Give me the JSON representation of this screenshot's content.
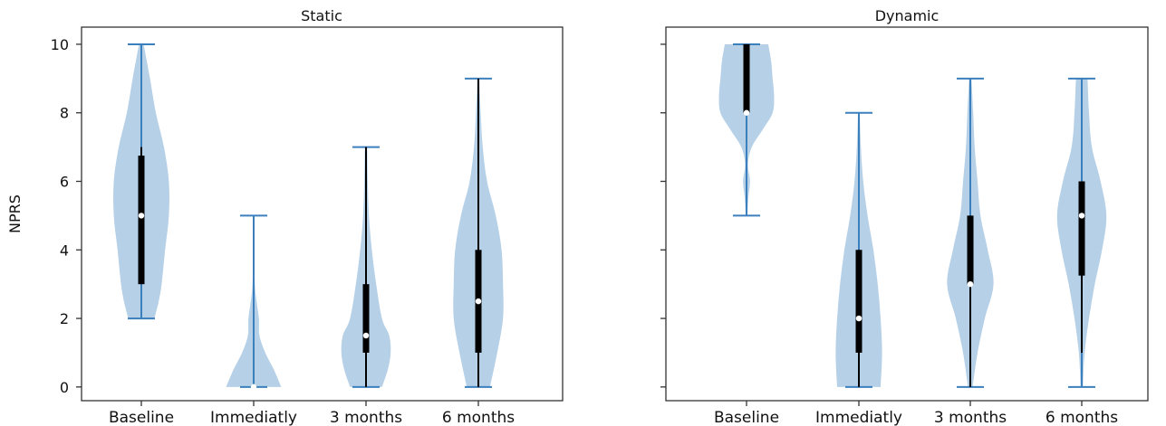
{
  "chart_data": [
    {
      "type": "violin",
      "title": "Static",
      "ylabel": "NPRS",
      "xlabel": "",
      "ylim": [
        -0.4,
        10.5
      ],
      "yticks": [
        0,
        2,
        4,
        6,
        8,
        10
      ],
      "categories": [
        "Baseline",
        "Immediatly",
        "3 months",
        "6 months"
      ],
      "violin_color": "#a8c8e3",
      "line_color": "#3b7fbd",
      "series": [
        {
          "min": 2,
          "max": 10,
          "q1": 3,
          "median": 5,
          "q3": 6.75,
          "whisker_low": 3,
          "whisker_high": 7,
          "profile": [
            [
              2,
              0.45
            ],
            [
              2.5,
              0.6
            ],
            [
              3,
              0.7
            ],
            [
              4,
              0.82
            ],
            [
              5,
              0.95
            ],
            [
              6,
              0.95
            ],
            [
              7,
              0.78
            ],
            [
              8,
              0.5
            ],
            [
              9,
              0.3
            ],
            [
              10,
              0.08
            ]
          ]
        },
        {
          "min": 0,
          "max": 5,
          "q1": 0,
          "median": 0,
          "q3": 0,
          "whisker_low": 0,
          "whisker_high": 0,
          "profile": [
            [
              0,
              0.95
            ],
            [
              0.5,
              0.7
            ],
            [
              1,
              0.4
            ],
            [
              1.5,
              0.2
            ],
            [
              2,
              0.18
            ],
            [
              2.5,
              0.1
            ],
            [
              3,
              0.04
            ],
            [
              4,
              0.015
            ],
            [
              5,
              0.01
            ]
          ]
        },
        {
          "min": 0,
          "max": 7,
          "q1": 1,
          "median": 1.5,
          "q3": 3,
          "whisker_low": 0,
          "whisker_high": 7,
          "profile": [
            [
              0,
              0.55
            ],
            [
              0.5,
              0.75
            ],
            [
              1,
              0.85
            ],
            [
              1.5,
              0.8
            ],
            [
              2,
              0.55
            ],
            [
              3,
              0.35
            ],
            [
              4,
              0.2
            ],
            [
              5,
              0.1
            ],
            [
              6,
              0.06
            ],
            [
              7,
              0.04
            ]
          ]
        },
        {
          "min": 0,
          "max": 9,
          "q1": 1,
          "median": 2.5,
          "q3": 4,
          "whisker_low": 0,
          "whisker_high": 9,
          "profile": [
            [
              0,
              0.4
            ],
            [
              1,
              0.65
            ],
            [
              2,
              0.85
            ],
            [
              3,
              0.85
            ],
            [
              4,
              0.8
            ],
            [
              5,
              0.6
            ],
            [
              6,
              0.3
            ],
            [
              7,
              0.15
            ],
            [
              8,
              0.08
            ],
            [
              9,
              0.03
            ]
          ]
        }
      ]
    },
    {
      "type": "violin",
      "title": "Dynamic",
      "ylabel": "",
      "xlabel": "",
      "ylim": [
        -0.4,
        10.5
      ],
      "yticks": [
        0,
        2,
        4,
        6,
        8,
        10
      ],
      "categories": [
        "Baseline",
        "Immediatly",
        "3 months",
        "6 months"
      ],
      "violin_color": "#a8c8e3",
      "line_color": "#3b7fbd",
      "series": [
        {
          "min": 5,
          "max": 10,
          "q1": 8,
          "median": 8,
          "q3": 10,
          "whisker_low": 8,
          "whisker_high": 10,
          "profile": [
            [
              5,
              0.03
            ],
            [
              5.5,
              0.06
            ],
            [
              6,
              0.12
            ],
            [
              6.5,
              0.05
            ],
            [
              7,
              0.18
            ],
            [
              7.5,
              0.55
            ],
            [
              8,
              0.9
            ],
            [
              8.5,
              0.95
            ],
            [
              9,
              0.9
            ],
            [
              9.5,
              0.85
            ],
            [
              10,
              0.75
            ]
          ]
        },
        {
          "min": 0,
          "max": 8,
          "q1": 1,
          "median": 2,
          "q3": 4,
          "whisker_low": 0,
          "whisker_high": 4,
          "profile": [
            [
              0,
              0.75
            ],
            [
              1,
              0.8
            ],
            [
              2,
              0.75
            ],
            [
              3,
              0.65
            ],
            [
              4,
              0.5
            ],
            [
              5,
              0.3
            ],
            [
              6,
              0.15
            ],
            [
              7,
              0.07
            ],
            [
              8,
              0.03
            ]
          ]
        },
        {
          "min": 0,
          "max": 9,
          "q1": 3,
          "median": 3,
          "q3": 5,
          "whisker_low": 0,
          "whisker_high": 5,
          "profile": [
            [
              0,
              0.08
            ],
            [
              1,
              0.25
            ],
            [
              2,
              0.5
            ],
            [
              3,
              0.8
            ],
            [
              4,
              0.6
            ],
            [
              5,
              0.35
            ],
            [
              6,
              0.25
            ],
            [
              7,
              0.15
            ],
            [
              8,
              0.1
            ],
            [
              9,
              0.04
            ]
          ]
        },
        {
          "min": 0,
          "max": 9,
          "q1": 3.25,
          "median": 5,
          "q3": 6,
          "whisker_low": 1,
          "whisker_high": 6,
          "profile": [
            [
              0,
              0.04
            ],
            [
              1,
              0.1
            ],
            [
              2,
              0.25
            ],
            [
              3,
              0.45
            ],
            [
              4,
              0.7
            ],
            [
              5,
              0.85
            ],
            [
              6,
              0.65
            ],
            [
              7,
              0.35
            ],
            [
              8,
              0.25
            ],
            [
              9,
              0.2
            ]
          ]
        }
      ]
    }
  ]
}
